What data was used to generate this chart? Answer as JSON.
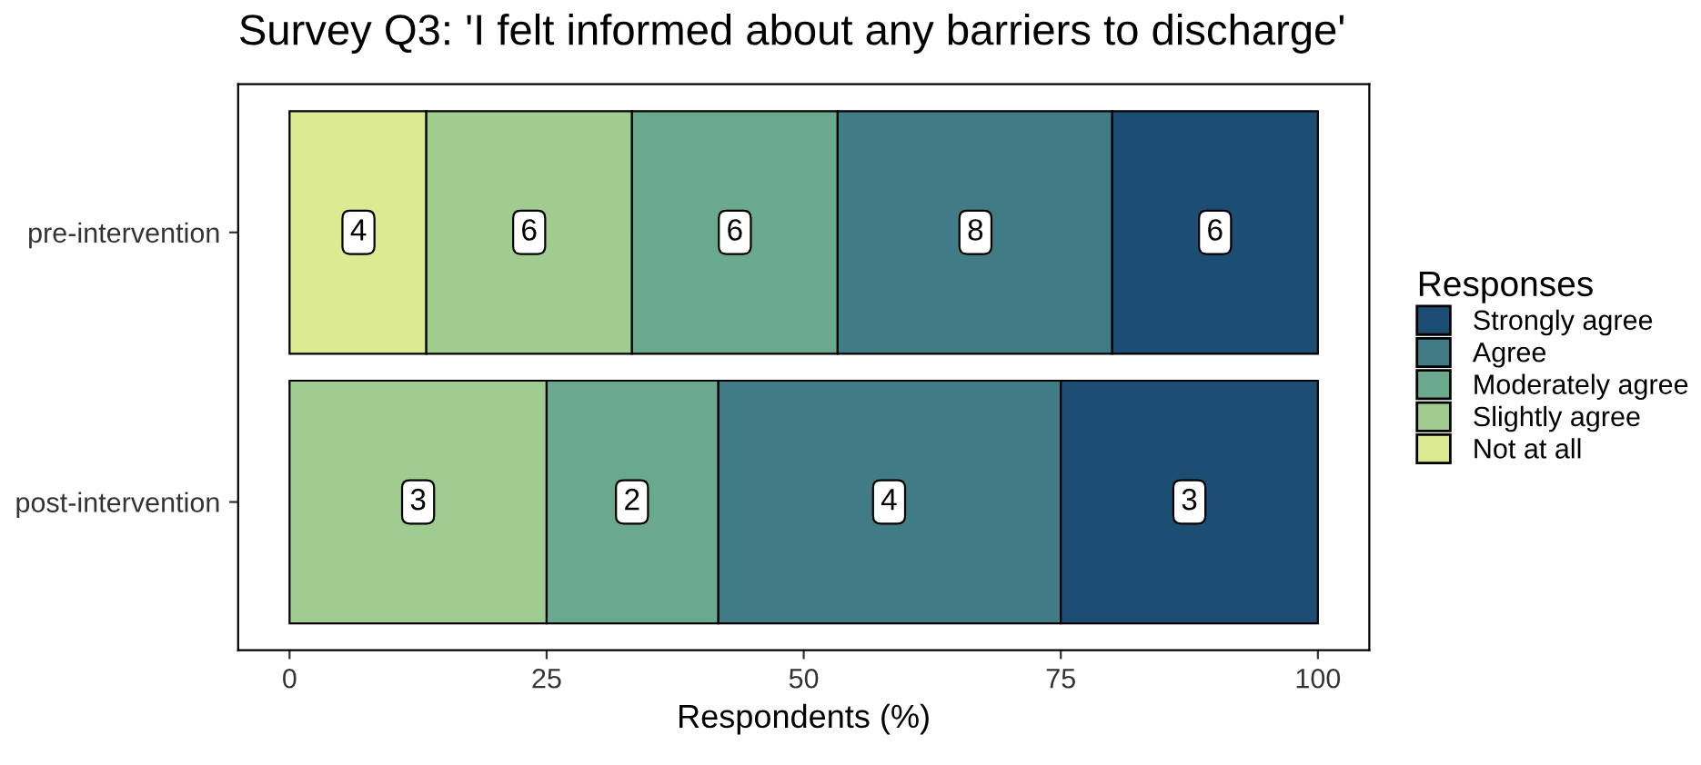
{
  "chart_data": {
    "type": "bar",
    "orientation": "horizontal",
    "stacked": true,
    "title": "Survey Q3: 'I felt informed about any barriers to discharge'",
    "xlabel": "Respondents (%)",
    "legend_title": "Responses",
    "legend": "right",
    "categories": [
      "pre-intervention",
      "post-intervention"
    ],
    "series": [
      {
        "name": "Not at all",
        "color": "#dceb92",
        "values": [
          13.3,
          null
        ]
      },
      {
        "name": "Slightly agree",
        "color": "#a0cd8f",
        "values": [
          20,
          25
        ]
      },
      {
        "name": "Moderately agree",
        "color": "#6ba98f",
        "values": [
          20,
          16.7
        ]
      },
      {
        "name": "Agree",
        "color": "#417c86",
        "values": [
          26.7,
          33.3
        ]
      },
      {
        "name": "Strongly agree",
        "color": "#1c4d73",
        "values": [
          20,
          25
        ]
      }
    ],
    "annotations": [
      {
        "text": "4",
        "x": 6.7,
        "y": "pre-intervention"
      },
      {
        "text": "6",
        "x": 23.3,
        "y": "pre-intervention"
      },
      {
        "text": "6",
        "x": 43.3,
        "y": "pre-intervention"
      },
      {
        "text": "8",
        "x": 66.7,
        "y": "pre-intervention"
      },
      {
        "text": "6",
        "x": 90,
        "y": "pre-intervention"
      },
      {
        "text": "3",
        "x": 12.5,
        "y": "post-intervention"
      },
      {
        "text": "2",
        "x": 33.3,
        "y": "post-intervention"
      },
      {
        "text": "4",
        "x": 58.3,
        "y": "post-intervention"
      },
      {
        "text": "3",
        "x": 87.5,
        "y": "post-intervention"
      }
    ],
    "xlim": [
      -5,
      105
    ],
    "xticks": [
      0,
      25,
      50,
      75,
      100
    ],
    "grid": false
  }
}
